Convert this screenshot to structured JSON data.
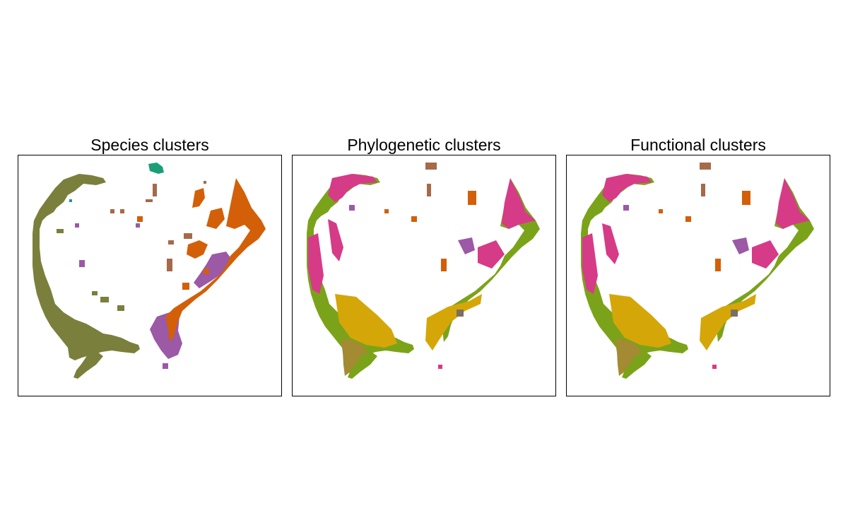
{
  "panels": [
    {
      "title": "Species clusters"
    },
    {
      "title": "Phylogenetic clusters"
    },
    {
      "title": "Functional clusters"
    }
  ],
  "palette": {
    "olive": "#7b7f3c",
    "orange": "#d35f08",
    "purple": "#9b59a6",
    "teal": "#1b9e77",
    "brown": "#a6694a",
    "magenta": "#d63b87",
    "green": "#7ba319",
    "gold": "#d5a608",
    "khaki": "#a48a32",
    "gray": "#7a6f63"
  }
}
